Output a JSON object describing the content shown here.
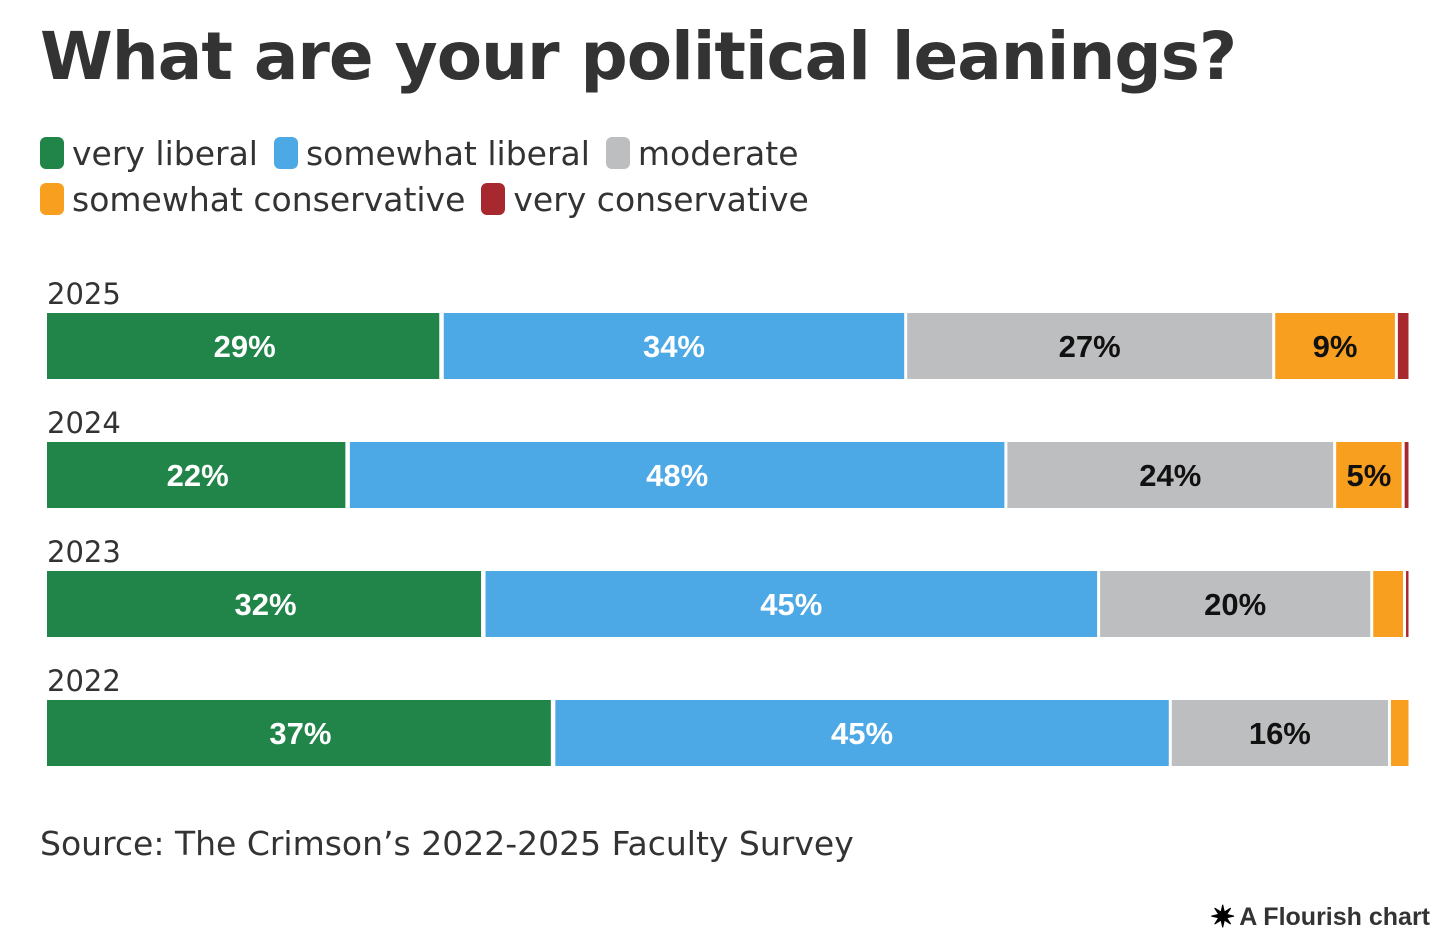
{
  "header": {
    "title": "What are your political leanings?"
  },
  "footer": {
    "source": "Source: The Crimson’s 2022-2025 Faculty Survey",
    "credit": "A Flourish chart",
    "credit_icon": "flourish-asterisk-icon"
  },
  "chart_data": {
    "type": "bar",
    "orientation": "horizontal",
    "stacked": "percent",
    "title": "What are your political leanings?",
    "xlabel": "",
    "ylabel": "",
    "xlim": [
      0,
      100
    ],
    "grid": false,
    "legend": "top-left",
    "categories": [
      "2025",
      "2024",
      "2023",
      "2022"
    ],
    "series": [
      {
        "name": "very liberal",
        "color": "#21854a",
        "label_color": "#ffffff",
        "values": [
          29,
          22,
          32,
          37
        ],
        "labels": [
          "29%",
          "22%",
          "32%",
          "37%"
        ]
      },
      {
        "name": "somewhat liberal",
        "color": "#4da9e6",
        "label_color": "#ffffff",
        "values": [
          34,
          48,
          45,
          45
        ],
        "labels": [
          "34%",
          "48%",
          "45%",
          "45%"
        ]
      },
      {
        "name": "moderate",
        "color": "#bdbebf",
        "label_color": "#111111",
        "values": [
          27,
          24,
          20,
          16
        ],
        "labels": [
          "27%",
          "24%",
          "20%",
          "16%"
        ]
      },
      {
        "name": "somewhat conservative",
        "color": "#f89f1f",
        "label_color": "#111111",
        "values": [
          9,
          5,
          2.4,
          1.5
        ],
        "labels": [
          "9%",
          "5%",
          "",
          ""
        ]
      },
      {
        "name": "very conservative",
        "color": "#a7282f",
        "label_color": "#ffffff",
        "values": [
          1,
          0.5,
          0.4,
          0
        ],
        "labels": [
          "",
          "",
          "",
          ""
        ]
      }
    ],
    "annotations": []
  }
}
